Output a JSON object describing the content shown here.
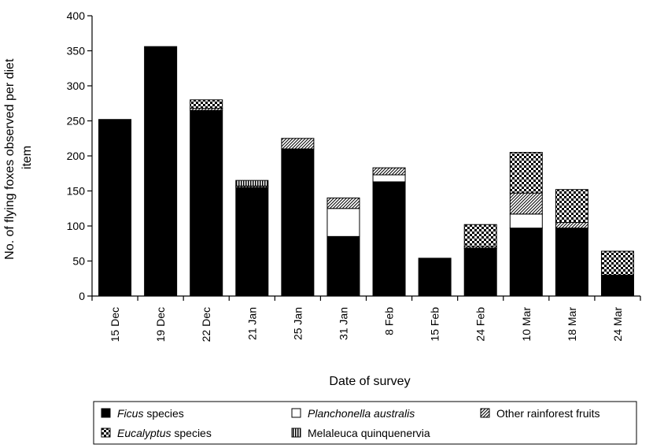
{
  "chart_data": {
    "type": "bar",
    "stacked": true,
    "title": "",
    "xlabel": "Date of survey",
    "ylabel": "No. of flying foxes observed per diet item",
    "ylim": [
      0,
      400
    ],
    "yticks": [
      0,
      50,
      100,
      150,
      200,
      250,
      300,
      350,
      400
    ],
    "categories": [
      "15 Dec",
      "19 Dec",
      "22 Dec",
      "21 Jan",
      "25 Jan",
      "31 Jan",
      "8 Feb",
      "15 Feb",
      "24 Feb",
      "10 Mar",
      "18 Mar",
      "24 Mar"
    ],
    "series": [
      {
        "name": "Ficus species",
        "pattern": "solid",
        "values": [
          252,
          356,
          265,
          155,
          210,
          85,
          163,
          54,
          68,
          97,
          97,
          30
        ]
      },
      {
        "name": "Planchonella australis",
        "pattern": "white",
        "values": [
          0,
          0,
          0,
          0,
          0,
          40,
          10,
          0,
          0,
          20,
          0,
          0
        ]
      },
      {
        "name": "Other rainforest fruits",
        "pattern": "hatch",
        "values": [
          0,
          0,
          3,
          2,
          15,
          15,
          10,
          0,
          2,
          30,
          8,
          0
        ]
      },
      {
        "name": "Eucalyptus species",
        "pattern": "checker",
        "values": [
          0,
          0,
          12,
          0,
          0,
          0,
          0,
          0,
          32,
          58,
          47,
          34
        ]
      },
      {
        "name": "Melaleuca quinquenervia",
        "pattern": "vstripe",
        "values": [
          0,
          0,
          0,
          8,
          0,
          0,
          0,
          0,
          0,
          0,
          0,
          0
        ]
      }
    ],
    "legend": {
      "placement": "bottom",
      "entries": [
        {
          "italic": "Ficus",
          "rest": " species",
          "pattern": "solid"
        },
        {
          "italic": "Planchonella australis",
          "rest": "",
          "pattern": "white"
        },
        {
          "italic": "",
          "rest": "Other rainforest fruits",
          "pattern": "hatch"
        },
        {
          "italic": "Eucalyptus",
          "rest": " species",
          "pattern": "checker"
        },
        {
          "italic": "",
          "rest": "Melaleuca quinquenervia",
          "pattern": "vstripe"
        }
      ]
    },
    "grid": false
  }
}
